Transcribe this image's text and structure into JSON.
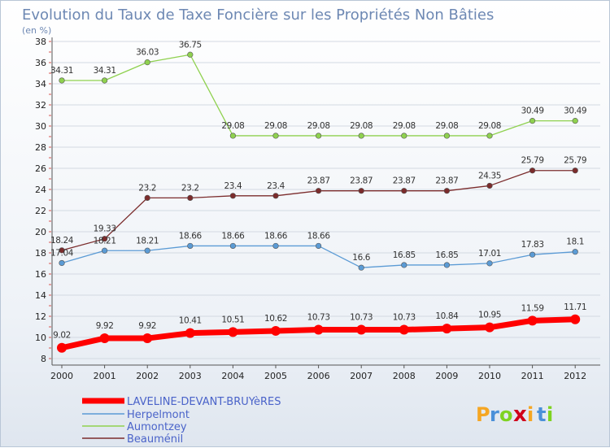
{
  "chart_data": {
    "type": "line",
    "title": "Evolution du Taux de Taxe Foncière sur les Propriétés Non Bâties",
    "subtitle": "(en %)",
    "x": [
      "2000",
      "2001",
      "2002",
      "2003",
      "2004",
      "2005",
      "2006",
      "2007",
      "2008",
      "2009",
      "2010",
      "2011",
      "2012"
    ],
    "yticks": [
      "8",
      "10",
      "12",
      "14",
      "16",
      "18",
      "20",
      "22",
      "24",
      "26",
      "28",
      "30",
      "32",
      "34",
      "36",
      "38"
    ],
    "ylim": [
      8,
      38
    ],
    "grid": "horizontal",
    "legend_position": "bottom-left",
    "series": [
      {
        "name": "LAVELINE-DEVANT-BRUYèRES",
        "color": "#ff0000",
        "values": [
          9.02,
          9.92,
          9.92,
          10.41,
          10.51,
          10.62,
          10.73,
          10.73,
          10.73,
          10.84,
          10.95,
          11.59,
          11.71
        ],
        "labels": [
          "9.02",
          "9.92",
          "9.92",
          "10.41",
          "10.51",
          "10.62",
          "10.73",
          "10.73",
          "10.73",
          "10.84",
          "10.95",
          "11.59",
          "11.71"
        ]
      },
      {
        "name": "Herpelmont",
        "color": "#5b9bd5",
        "values": [
          17.04,
          18.21,
          18.21,
          18.66,
          18.66,
          18.66,
          18.66,
          16.6,
          16.85,
          16.85,
          17.01,
          17.83,
          18.1
        ],
        "labels": [
          "17.04",
          "18.21",
          "18.21",
          "18.66",
          "18.66",
          "18.66",
          "18.66",
          "16.6",
          "16.85",
          "16.85",
          "17.01",
          "17.83",
          "18.1"
        ]
      },
      {
        "name": "Aumontzey",
        "color": "#8fd14f",
        "values": [
          34.31,
          34.31,
          36.03,
          36.75,
          29.08,
          29.08,
          29.08,
          29.08,
          29.08,
          29.08,
          29.08,
          30.49,
          30.49
        ],
        "labels": [
          "34.31",
          "34.31",
          "36.03",
          "36.75",
          "29.08",
          "29.08",
          "29.08",
          "29.08",
          "29.08",
          "29.08",
          "29.08",
          "30.49",
          "30.49"
        ]
      },
      {
        "name": "Beauménil",
        "color": "#7b2c2c",
        "values": [
          18.24,
          19.33,
          23.2,
          23.2,
          23.4,
          23.4,
          23.87,
          23.87,
          23.87,
          23.87,
          24.35,
          25.79,
          25.79
        ],
        "labels": [
          "18.24",
          "19.33",
          "23.2",
          "23.2",
          "23.4",
          "23.4",
          "23.87",
          "23.87",
          "23.87",
          "23.87",
          "24.35",
          "25.79",
          "25.79"
        ]
      }
    ]
  },
  "logo": {
    "letters": [
      "P",
      "r",
      "o",
      "x",
      "i",
      "t",
      "i"
    ]
  }
}
